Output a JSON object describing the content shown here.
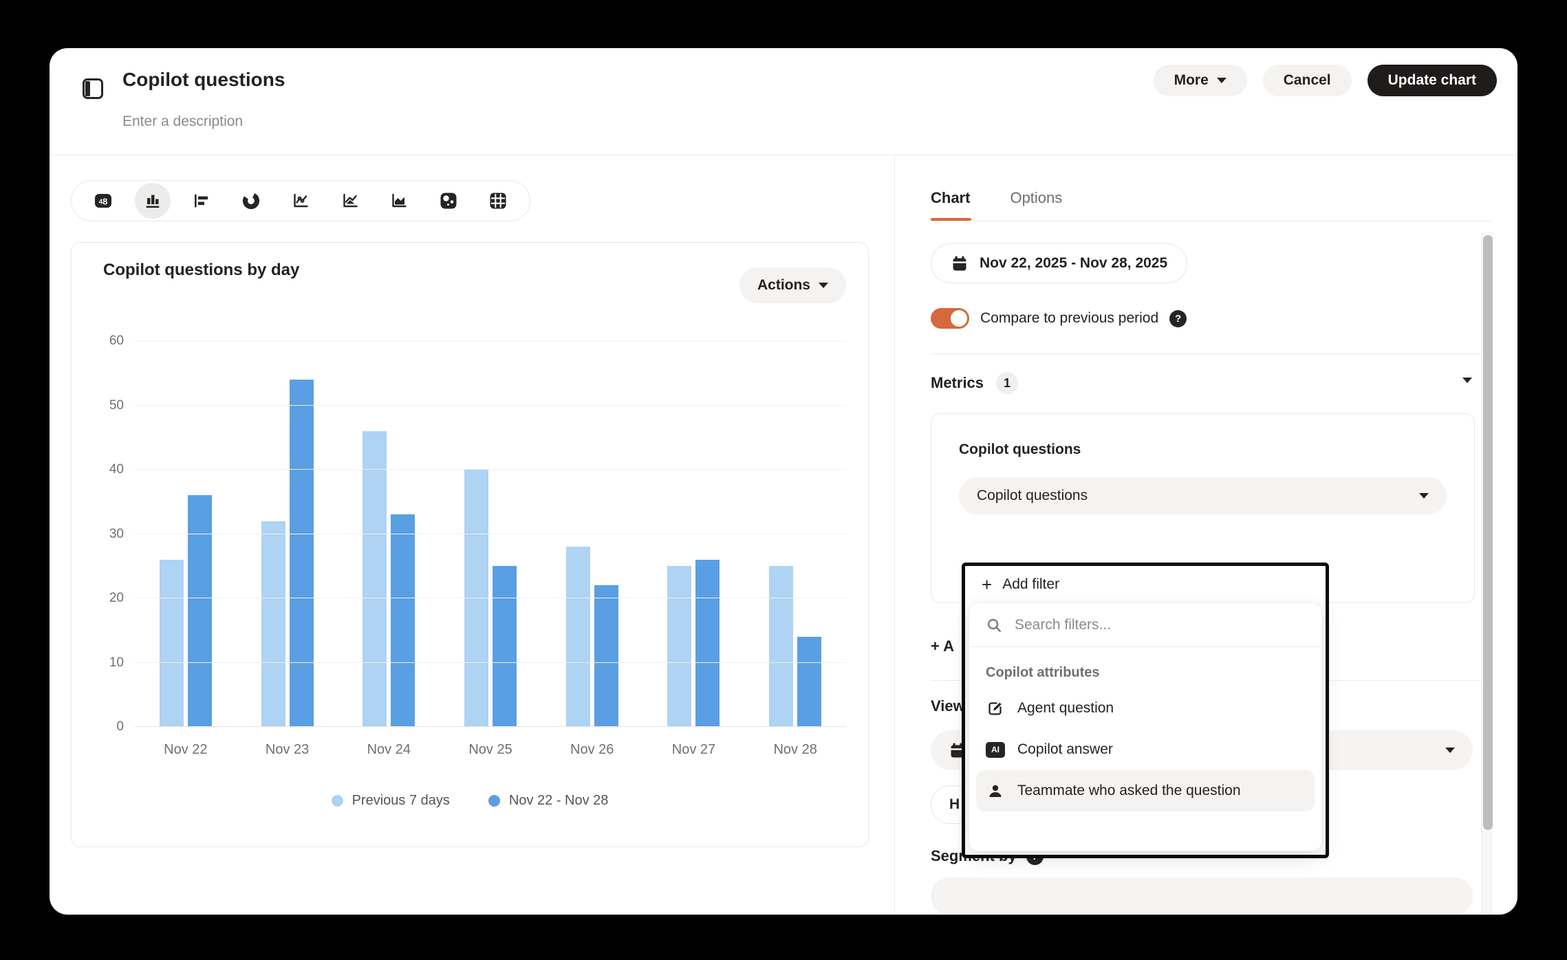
{
  "header": {
    "title": "Copilot questions",
    "description_placeholder": "Enter a description",
    "more_label": "More",
    "cancel_label": "Cancel",
    "update_label": "Update chart"
  },
  "toolbar": {
    "selected": "column-chart",
    "icons": [
      "kpi-number",
      "column-chart",
      "bar-chart-horizontal",
      "donut-chart",
      "line-chart",
      "line-area-chart",
      "area-chart",
      "bubble-chart",
      "table-view"
    ]
  },
  "chart_card": {
    "title": "Copilot questions by day",
    "actions_label": "Actions"
  },
  "chart_data": {
    "type": "bar",
    "title": "Copilot questions by day",
    "categories": [
      "Nov 22",
      "Nov 23",
      "Nov 24",
      "Nov 25",
      "Nov 26",
      "Nov 27",
      "Nov 28"
    ],
    "series": [
      {
        "name": "Previous 7 days",
        "color": "#aed3f3",
        "values": [
          26,
          32,
          46,
          40,
          28,
          25,
          25
        ]
      },
      {
        "name": "Nov 22 - Nov 28",
        "color": "#5a9fe3",
        "values": [
          36,
          54,
          33,
          25,
          22,
          26,
          14
        ]
      }
    ],
    "ylim": [
      0,
      60
    ],
    "ytick_step": 10,
    "grid": true,
    "legend_position": "bottom"
  },
  "panel": {
    "tabs": [
      {
        "label": "Chart",
        "active": true
      },
      {
        "label": "Options",
        "active": false
      }
    ],
    "date_range": "Nov 22, 2025 - Nov 28, 2025",
    "compare_toggle": {
      "label": "Compare to previous period",
      "on": true
    },
    "metrics_label": "Metrics",
    "metrics_count": "1",
    "metric_card": {
      "title": "Copilot questions",
      "selected_metric": "Copilot questions"
    },
    "add_metric_visible_label": "+ A",
    "view_section_visible_label": "View",
    "truncated_pill_visible_label": "H",
    "segment_label": "Segment by"
  },
  "popup": {
    "add_filter_label": "Add filter",
    "search_placeholder": "Search filters...",
    "search_value": "",
    "group_label": "Copilot attributes",
    "items": [
      {
        "label": "Agent question",
        "icon": "edit-icon",
        "highlighted": false
      },
      {
        "label": "Copilot answer",
        "icon": "ai-icon",
        "highlighted": false
      },
      {
        "label": "Teammate who asked the question",
        "icon": "person-icon",
        "highlighted": true
      }
    ]
  },
  "colors": {
    "accent_orange": "#e0653a",
    "bar_previous": "#aed3f3",
    "bar_current": "#5a9fe3",
    "dark_button": "#1f1d1c",
    "popup_border": "#0b0b0b"
  }
}
